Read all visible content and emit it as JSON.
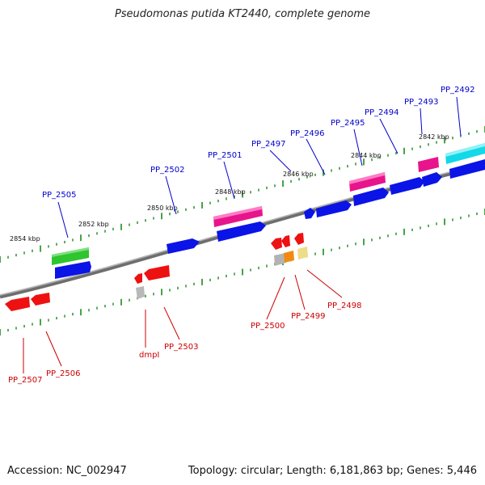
{
  "title": "Pseudomonas putida KT2440, complete genome",
  "footer": {
    "accession": "Accession: NC_002947",
    "summary": "Topology: circular; Length: 6,181,863 bp; Genes: 5,446"
  },
  "kbp_labels": [
    "2854 kbp",
    "2852 kbp",
    "2850 kbp",
    "2848 kbp",
    "2846 kbp",
    "2844 kbp",
    "2842 kbp"
  ],
  "forward_genes": [
    "PP_2505",
    "PP_2502",
    "PP_2501",
    "PP_2497",
    "PP_2496",
    "PP_2495",
    "PP_2494",
    "PP_2493",
    "PP_2492"
  ],
  "reverse_genes": [
    "PP_2507",
    "PP_2506",
    "dmpI",
    "PP_2503",
    "PP_2500",
    "PP_2499",
    "PP_2498"
  ],
  "colors": {
    "forward_label": "#0000cc",
    "reverse_label": "#cc0000",
    "blue": "#0a14e6",
    "pink": "#e8148c",
    "cyan": "#12d8e8",
    "green": "#2ec52e",
    "red": "#ee1111",
    "orange": "#f08a10",
    "gray": "#b0b0b0",
    "khaki": "#eedd88",
    "backbone": "#8a8a8a",
    "tick": "#1a8a1a"
  }
}
